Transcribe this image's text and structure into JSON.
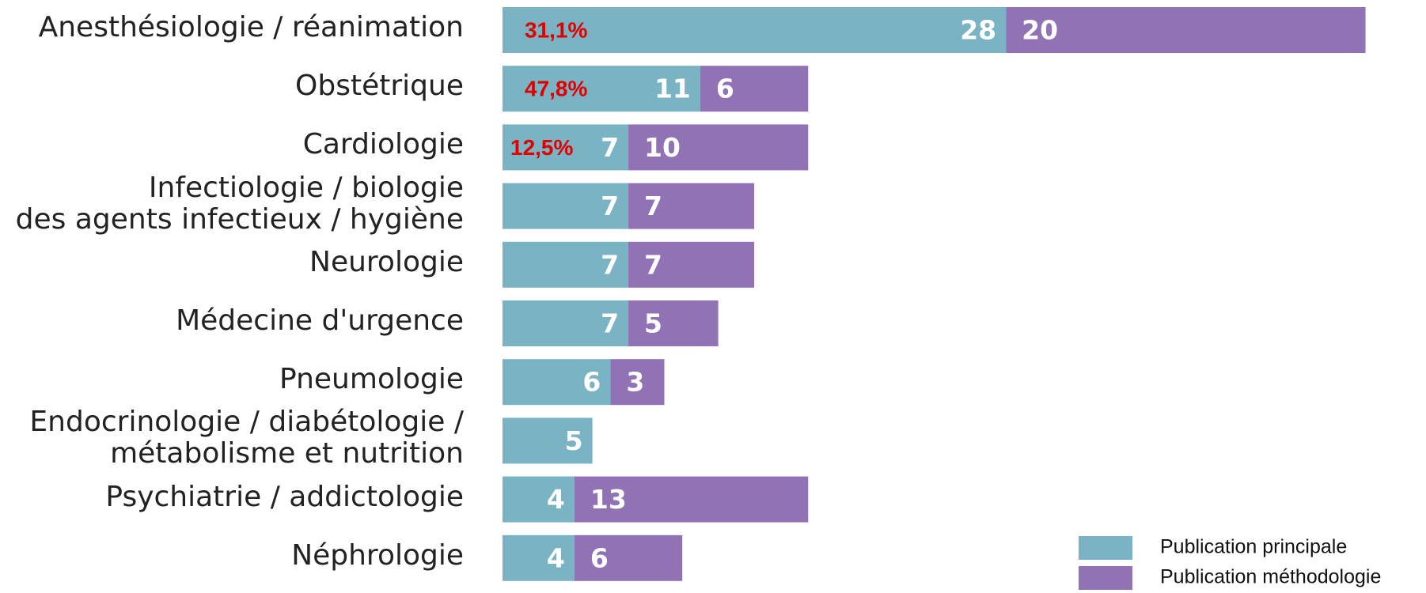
{
  "chart_data": {
    "type": "stacked-barh",
    "categories": [
      "Anesthésiologie / réanimation",
      "Obstétrique",
      "Cardiologie",
      "Infectiologie / biologie\ndes agents infectieux / hygiène",
      "Neurologie",
      "Médecine d'urgence",
      "Pneumologie",
      "Endocrinologie / diabétologie /\nmétabolisme et nutrition",
      "Psychiatrie / addictologie",
      "Néphrologie"
    ],
    "series": [
      {
        "name": "Publication principale",
        "color": "#7ab3c3",
        "values": [
          28,
          11,
          7,
          7,
          7,
          7,
          6,
          5,
          4,
          4
        ]
      },
      {
        "name": "Publication méthodologie",
        "color": "#9173b5",
        "values": [
          20,
          6,
          10,
          7,
          7,
          5,
          3,
          null,
          13,
          6
        ]
      }
    ],
    "annotations": [
      "31,1%",
      "47,8%",
      "12,5%"
    ],
    "legend": "lower right"
  }
}
